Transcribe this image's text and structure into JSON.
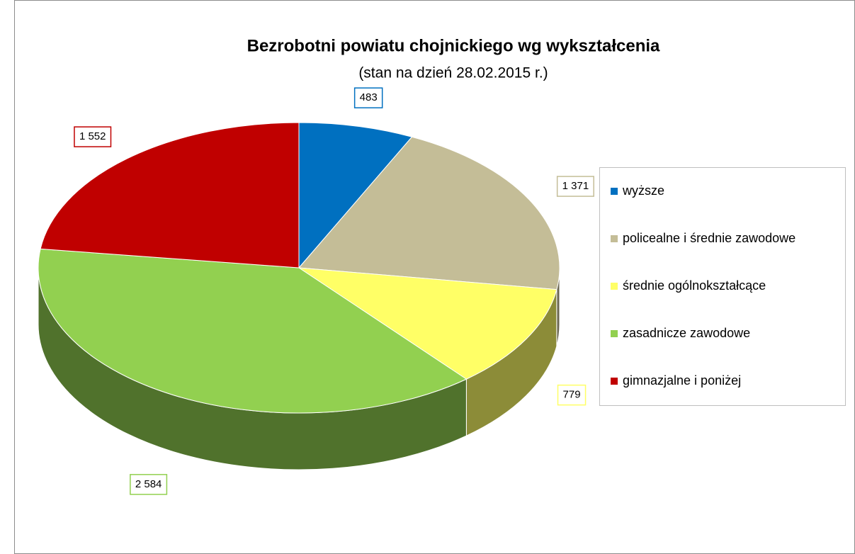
{
  "chart_data": {
    "type": "pie3d",
    "title": "Bezrobotni powiatu chojnickiego wg wykształcenia",
    "subtitle": "(stan na dzień 28.02.2015 r.)",
    "categories": [
      "wyższe",
      "policealne i średnie zawodowe",
      "średnie ogólnokształcące",
      "zasadnicze zawodowe",
      "gimnazjalne i poniżej"
    ],
    "values": [
      483,
      1371,
      779,
      2584,
      1552
    ],
    "value_labels": [
      "483",
      "1 371",
      "779",
      "2 584",
      "1 552"
    ],
    "colors": [
      "#0070c0",
      "#c4bd97",
      "#ffff66",
      "#92d050",
      "#c00000"
    ],
    "legend": "right"
  }
}
